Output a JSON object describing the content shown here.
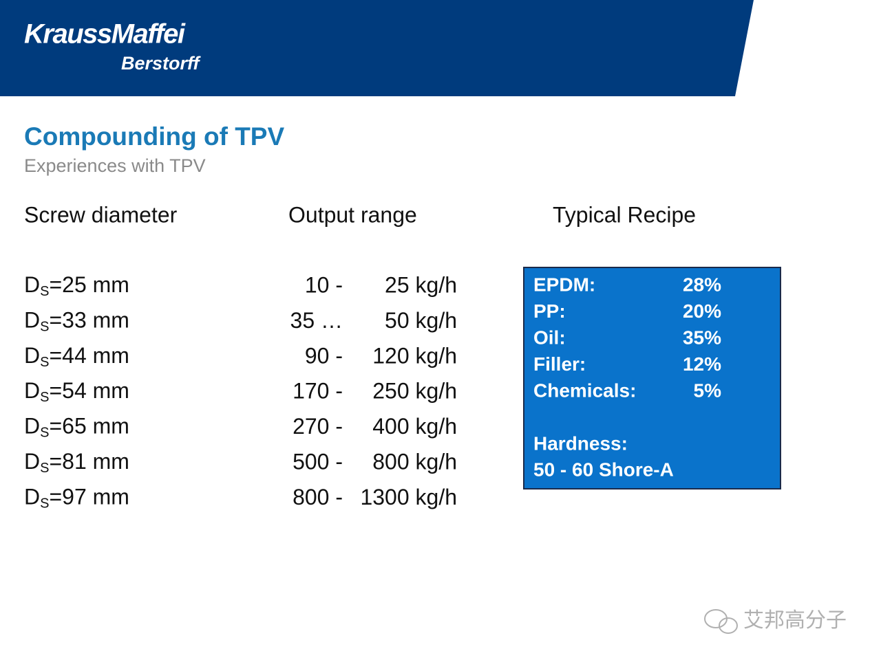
{
  "header": {
    "brand": "KraussMaffei",
    "division": "Berstorff"
  },
  "title": "Compounding of TPV",
  "subtitle": "Experiences with TPV",
  "columns": [
    "Screw diameter",
    "Output range",
    "Typical Recipe"
  ],
  "rows": [
    {
      "symbol": "D",
      "subscript": "S",
      "diameter": "=25 mm",
      "low": "10 -",
      "high": "25 kg/h"
    },
    {
      "symbol": "D",
      "subscript": "S",
      "diameter": "=33 mm",
      "low": "35 …",
      "high": "50 kg/h"
    },
    {
      "symbol": "D",
      "subscript": "S",
      "diameter": "=44 mm",
      "low": "90 -",
      "high": "120 kg/h"
    },
    {
      "symbol": "D",
      "subscript": "S",
      "diameter": "=54 mm",
      "low": "170 -",
      "high": "250 kg/h"
    },
    {
      "symbol": "D",
      "subscript": "S",
      "diameter": "=65 mm",
      "low": "270 -",
      "high": "400 kg/h"
    },
    {
      "symbol": "D",
      "subscript": "S",
      "diameter": "=81 mm",
      "low": "500 -",
      "high": "800 kg/h"
    },
    {
      "symbol": "D",
      "subscript": "S",
      "diameter": "=97 mm",
      "low": "800 -",
      "high": "1300 kg/h"
    }
  ],
  "recipe": {
    "items": [
      {
        "name": "EPDM:",
        "value": "28%"
      },
      {
        "name": "PP:",
        "value": "20%"
      },
      {
        "name": "Oil:",
        "value": "35%"
      },
      {
        "name": "Filler:",
        "value": "12%"
      },
      {
        "name": "Chemicals:",
        "value": "5%"
      }
    ],
    "hardness_label": "Hardness:",
    "hardness_value": "50 - 60 Shore-A"
  },
  "watermark": "艾邦高分子"
}
